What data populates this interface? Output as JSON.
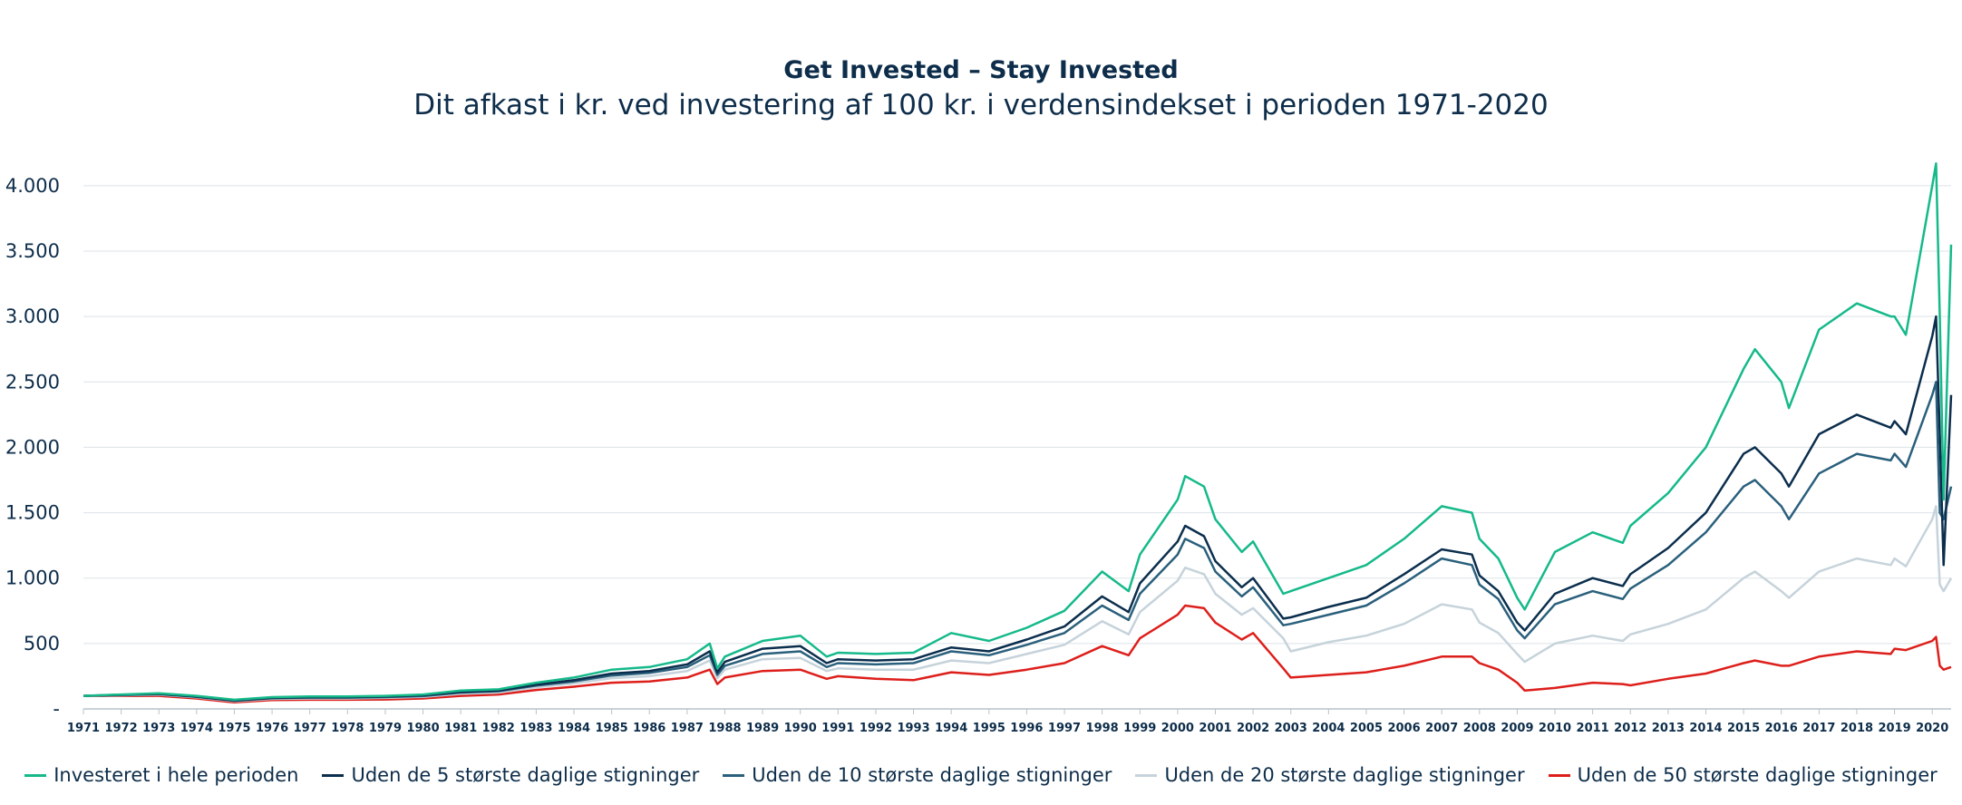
{
  "chart_data": {
    "type": "line",
    "title": "Get Invested – Stay Invested",
    "subtitle": "Dit afkast i kr. ved investering af 100 kr. i verdensindekset i perioden 1971-2020",
    "xlabel": "",
    "ylabel": "",
    "ylim": [
      0,
      4200
    ],
    "yticks": [
      0,
      500,
      1000,
      1500,
      2000,
      2500,
      3000,
      3500,
      4000
    ],
    "ytick_labels": [
      "-",
      "500",
      "1.000",
      "1.500",
      "2.000",
      "2.500",
      "3.000",
      "3.500",
      "4.000"
    ],
    "xlim": [
      1971,
      2020.5
    ],
    "xticks": [
      1971,
      1972,
      1973,
      1974,
      1975,
      1976,
      1977,
      1978,
      1979,
      1980,
      1981,
      1982,
      1983,
      1984,
      1985,
      1986,
      1987,
      1988,
      1989,
      1990,
      1991,
      1992,
      1993,
      1994,
      1995,
      1996,
      1997,
      1998,
      1999,
      2000,
      2001,
      2002,
      2003,
      2004,
      2005,
      2006,
      2007,
      2008,
      2009,
      2010,
      2011,
      2012,
      2013,
      2014,
      2015,
      2016,
      2017,
      2018,
      2019,
      2020
    ],
    "grid": true,
    "legend_position": "bottom",
    "x": [
      1971,
      1972,
      1973,
      1974,
      1975,
      1976,
      1977,
      1978,
      1979,
      1980,
      1981,
      1982,
      1983,
      1984,
      1985,
      1986,
      1987,
      1987.6,
      1987.8,
      1988,
      1989,
      1990,
      1990.7,
      1991,
      1992,
      1993,
      1994,
      1995,
      1996,
      1997,
      1998,
      1998.7,
      1999,
      2000,
      2000.2,
      2000.7,
      2001,
      2001.7,
      2002,
      2002.8,
      2003,
      2004,
      2005,
      2006,
      2007,
      2007.8,
      2008,
      2008.5,
      2009,
      2009.2,
      2010,
      2011,
      2011.8,
      2012,
      2013,
      2014,
      2015,
      2015.3,
      2016,
      2016.2,
      2017,
      2018,
      2018.9,
      2019,
      2019.3,
      2020,
      2020.1,
      2020.2,
      2020.3,
      2020.5
    ],
    "series": [
      {
        "name": "Investeret i hele perioden",
        "color": "#15b98a",
        "values": [
          100,
          110,
          120,
          100,
          70,
          90,
          95,
          95,
          100,
          110,
          140,
          150,
          200,
          240,
          300,
          320,
          380,
          500,
          310,
          400,
          520,
          560,
          400,
          430,
          420,
          430,
          580,
          520,
          620,
          750,
          1050,
          900,
          1180,
          1600,
          1780,
          1700,
          1450,
          1200,
          1280,
          880,
          900,
          1000,
          1100,
          1300,
          1550,
          1500,
          1300,
          1150,
          850,
          760,
          1200,
          1350,
          1270,
          1400,
          1650,
          2000,
          2600,
          2750,
          2500,
          2300,
          2900,
          3100,
          3000,
          3000,
          2860,
          4000,
          4170,
          3000,
          1600,
          3550
        ]
      },
      {
        "name": "Uden de 5 største daglige stigninger",
        "color": "#0b2e4d",
        "values": [
          100,
          108,
          115,
          95,
          65,
          85,
          90,
          90,
          95,
          105,
          130,
          140,
          185,
          220,
          270,
          290,
          340,
          440,
          280,
          360,
          460,
          480,
          350,
          380,
          370,
          380,
          470,
          440,
          530,
          630,
          860,
          740,
          960,
          1280,
          1400,
          1320,
          1130,
          930,
          1000,
          690,
          700,
          780,
          850,
          1030,
          1220,
          1180,
          1020,
          900,
          660,
          600,
          880,
          1000,
          940,
          1030,
          1230,
          1500,
          1950,
          2000,
          1800,
          1700,
          2100,
          2250,
          2150,
          2200,
          2100,
          2850,
          3000,
          2100,
          1100,
          2400
        ]
      },
      {
        "name": "Uden de 10 største daglige stigninger",
        "color": "#2a607c",
        "values": [
          100,
          106,
          112,
          92,
          62,
          82,
          86,
          86,
          90,
          98,
          125,
          135,
          178,
          210,
          255,
          275,
          320,
          410,
          260,
          330,
          420,
          440,
          320,
          350,
          340,
          350,
          440,
          410,
          490,
          580,
          790,
          680,
          880,
          1180,
          1300,
          1230,
          1050,
          860,
          930,
          640,
          650,
          720,
          790,
          960,
          1150,
          1100,
          950,
          840,
          600,
          540,
          800,
          900,
          840,
          920,
          1100,
          1350,
          1700,
          1750,
          1550,
          1450,
          1800,
          1950,
          1900,
          1950,
          1850,
          2400,
          2500,
          1500,
          1450,
          1700
        ]
      },
      {
        "name": "Uden de 20 største daglige stigninger",
        "color": "#c6d3db",
        "values": [
          100,
          104,
          108,
          88,
          58,
          76,
          80,
          80,
          84,
          92,
          115,
          125,
          165,
          195,
          235,
          250,
          290,
          370,
          235,
          300,
          380,
          390,
          290,
          310,
          300,
          300,
          370,
          350,
          420,
          490,
          670,
          570,
          740,
          980,
          1080,
          1030,
          880,
          720,
          770,
          540,
          440,
          510,
          560,
          650,
          800,
          760,
          660,
          580,
          420,
          360,
          500,
          560,
          520,
          570,
          650,
          760,
          1000,
          1050,
          900,
          850,
          1050,
          1150,
          1100,
          1150,
          1090,
          1450,
          1550,
          950,
          900,
          1000
        ]
      },
      {
        "name": "Uden de 50 største daglige stigninger",
        "color": "#dd1f1b",
        "values": [
          100,
          100,
          100,
          80,
          50,
          68,
          70,
          70,
          72,
          80,
          100,
          110,
          145,
          170,
          200,
          210,
          240,
          300,
          190,
          240,
          290,
          300,
          230,
          250,
          230,
          220,
          280,
          260,
          300,
          350,
          480,
          410,
          540,
          720,
          790,
          770,
          660,
          530,
          580,
          310,
          240,
          260,
          280,
          330,
          400,
          400,
          350,
          300,
          200,
          140,
          160,
          200,
          190,
          180,
          230,
          270,
          350,
          370,
          330,
          330,
          400,
          440,
          420,
          460,
          450,
          520,
          550,
          330,
          300,
          320
        ]
      }
    ]
  }
}
